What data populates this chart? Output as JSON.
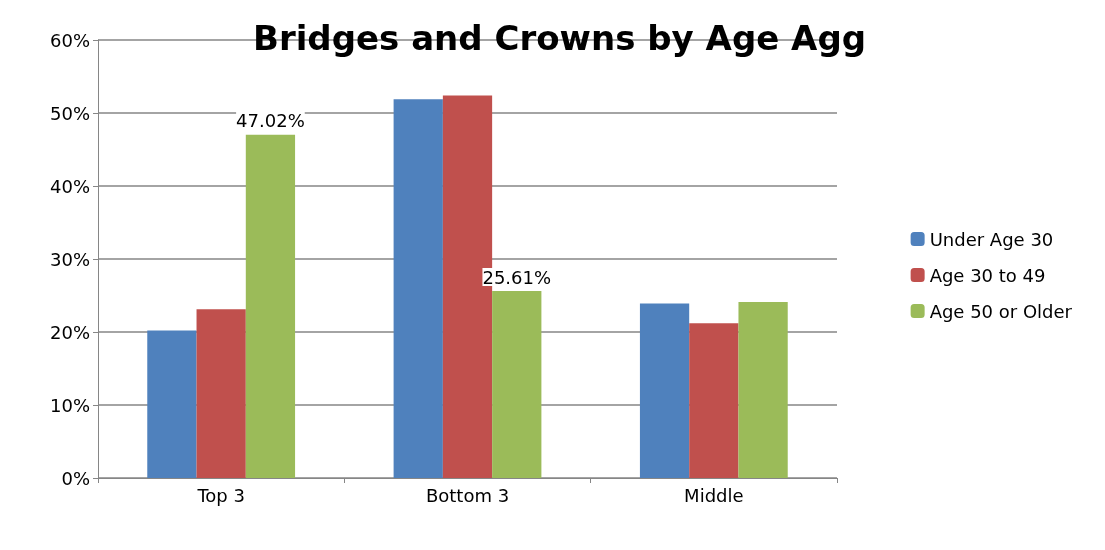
{
  "chart_data": {
    "type": "bar",
    "title": "Bridges and Crowns by Age Agg",
    "categories": [
      "Top 3",
      "Bottom 3",
      "Middle"
    ],
    "series": [
      {
        "name": "Under Age 30",
        "color": "#4f81bd",
        "values": [
          20.2,
          51.9,
          23.9
        ]
      },
      {
        "name": "Age 30 to 49",
        "color": "#c0504d",
        "values": [
          23.1,
          52.4,
          21.2
        ]
      },
      {
        "name": "Age 50 or Older",
        "color": "#9bbb59",
        "values": [
          47.02,
          25.61,
          24.1
        ],
        "value_labels": [
          "47.02%",
          "25.61%",
          null
        ]
      }
    ],
    "ylim": [
      0,
      60
    ],
    "yticks": [
      {
        "value": 0,
        "label": "0%"
      },
      {
        "value": 10,
        "label": "10%"
      },
      {
        "value": 20,
        "label": "20%"
      },
      {
        "value": 30,
        "label": "30%"
      },
      {
        "value": 40,
        "label": "40%"
      },
      {
        "value": 50,
        "label": "50%"
      },
      {
        "value": 60,
        "label": "60%"
      }
    ],
    "grid": "y",
    "legend": "right"
  }
}
